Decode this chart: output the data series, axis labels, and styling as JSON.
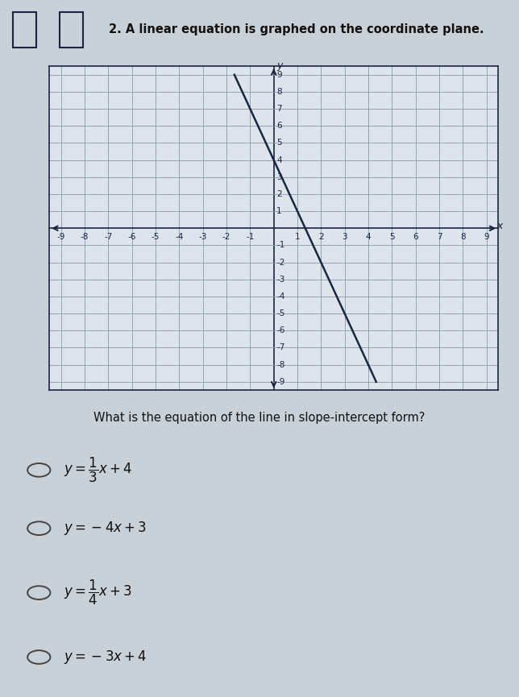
{
  "title": "2. A linear equation is graphed on the coordinate plane.",
  "question": "What is the equation of the line in slope-intercept form?",
  "choice_labels": [
    "$y = \\dfrac{1}{3}x + 4$",
    "$y = -4x + 3$",
    "$y = \\dfrac{1}{4}x + 3$",
    "$y = -3x + 4$"
  ],
  "slope": -3,
  "intercept": 4,
  "x_range": [
    -9,
    9
  ],
  "y_range": [
    -9,
    9
  ],
  "grid_color": "#8899aa",
  "axis_color": "#1a2540",
  "line_color": "#1a2540",
  "plot_bg_color": "#dde4ec",
  "page_bg_color": "#c8d0d8",
  "tick_fontsize": 7.5,
  "fig_width": 6.44,
  "fig_height": 8.65
}
